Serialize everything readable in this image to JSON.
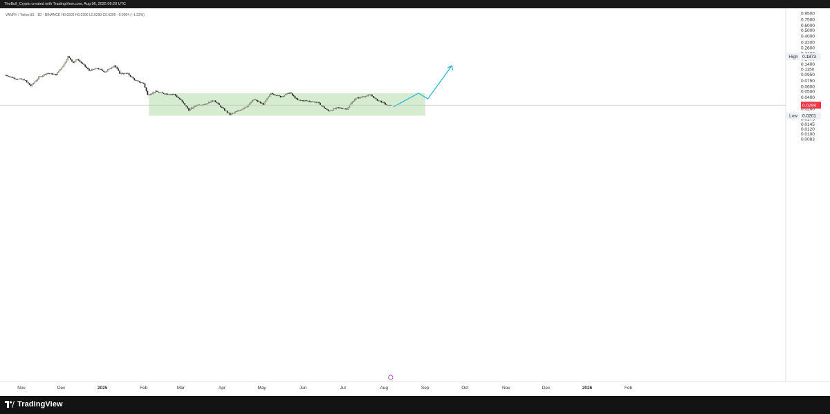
{
  "header": {
    "caption": "TheBull_Crypto created with TradingView.com, Aug 06, 2025 06:20 UTC"
  },
  "legend": {
    "text": "VANRY / TetherUS · 1D · BINANCE  H0.0303  H0.0306  L0.0290  C0.0299  −0.0004 (−1.32%)"
  },
  "footer": {
    "brand": "TradingView"
  },
  "colors": {
    "up": "#26a69a",
    "down": "#1a1a1a",
    "candle_up_body": "#c9b98e",
    "zone_fill": "#d3ebcd",
    "arrow": "#29b6d6",
    "price_tag": "#f23645",
    "divider": "#e0e0e0"
  },
  "chart_data": {
    "type": "candlestick",
    "symbol": "VANRY / TetherUS",
    "timeframe": "1D",
    "exchange": "BINANCE",
    "y_scale": "log",
    "y_ticks": [
      "0.9500",
      "0.7500",
      "0.6000",
      "0.5000",
      "0.4000",
      "0.3200",
      "0.2600",
      "0.2100",
      "0.1700",
      "0.1400",
      "0.1150",
      "0.0950",
      "0.0750",
      "0.0600",
      "0.0500",
      "0.0400",
      "0.0320",
      "0.0260",
      "0.0210",
      "0.0175",
      "0.0145",
      "0.0120",
      "0.0100",
      "0.0083"
    ],
    "y_tick_values": [
      0.95,
      0.75,
      0.6,
      0.5,
      0.4,
      0.32,
      0.26,
      0.21,
      0.17,
      0.14,
      0.115,
      0.095,
      0.075,
      0.06,
      0.05,
      0.04,
      0.032,
      0.026,
      0.021,
      0.0175,
      0.0145,
      0.012,
      0.01,
      0.0083
    ],
    "x_ticks": [
      "Nov",
      "Dec",
      "2025",
      "Feb",
      "Mar",
      "Apr",
      "May",
      "Jun",
      "Jul",
      "Aug",
      "Sep",
      "Oct",
      "Nov",
      "Dec",
      "2026",
      "Feb"
    ],
    "x_tick_dates": [
      "2024-11-01",
      "2024-12-01",
      "2025-01-01",
      "2025-02-01",
      "2025-03-01",
      "2025-04-01",
      "2025-05-01",
      "2025-06-01",
      "2025-07-01",
      "2025-08-01",
      "2025-09-01",
      "2025-10-01",
      "2025-11-01",
      "2025-12-01",
      "2026-01-01",
      "2026-02-01"
    ],
    "x_tick_bold": [
      false,
      false,
      true,
      false,
      false,
      false,
      false,
      false,
      false,
      false,
      false,
      false,
      false,
      false,
      true,
      false
    ],
    "price_path": [
      [
        "2024-10-20",
        0.093
      ],
      [
        "2024-10-27",
        0.082
      ],
      [
        "2024-11-03",
        0.078
      ],
      [
        "2024-11-08",
        0.062
      ],
      [
        "2024-11-14",
        0.085
      ],
      [
        "2024-11-20",
        0.1
      ],
      [
        "2024-11-27",
        0.095
      ],
      [
        "2024-12-03",
        0.14
      ],
      [
        "2024-12-06",
        0.187
      ],
      [
        "2024-12-10",
        0.15
      ],
      [
        "2024-12-13",
        0.17
      ],
      [
        "2024-12-18",
        0.135
      ],
      [
        "2024-12-22",
        0.11
      ],
      [
        "2024-12-28",
        0.12
      ],
      [
        "2025-01-03",
        0.105
      ],
      [
        "2025-01-10",
        0.135
      ],
      [
        "2025-01-14",
        0.1
      ],
      [
        "2025-01-20",
        0.098
      ],
      [
        "2025-01-26",
        0.075
      ],
      [
        "2025-02-01",
        0.068
      ],
      [
        "2025-02-04",
        0.044
      ],
      [
        "2025-02-10",
        0.05
      ],
      [
        "2025-02-17",
        0.046
      ],
      [
        "2025-02-24",
        0.045
      ],
      [
        "2025-03-01",
        0.036
      ],
      [
        "2025-03-07",
        0.025
      ],
      [
        "2025-03-13",
        0.03
      ],
      [
        "2025-03-19",
        0.031
      ],
      [
        "2025-03-26",
        0.036
      ],
      [
        "2025-04-01",
        0.027
      ],
      [
        "2025-04-07",
        0.021
      ],
      [
        "2025-04-13",
        0.024
      ],
      [
        "2025-04-20",
        0.029
      ],
      [
        "2025-04-25",
        0.037
      ],
      [
        "2025-05-02",
        0.031
      ],
      [
        "2025-05-08",
        0.047
      ],
      [
        "2025-05-15",
        0.041
      ],
      [
        "2025-05-22",
        0.048
      ],
      [
        "2025-05-28",
        0.036
      ],
      [
        "2025-06-05",
        0.035
      ],
      [
        "2025-06-12",
        0.033
      ],
      [
        "2025-06-20",
        0.024
      ],
      [
        "2025-06-27",
        0.027
      ],
      [
        "2025-07-04",
        0.026
      ],
      [
        "2025-07-10",
        0.038
      ],
      [
        "2025-07-17",
        0.042
      ],
      [
        "2025-07-22",
        0.044
      ],
      [
        "2025-07-26",
        0.037
      ],
      [
        "2025-07-31",
        0.033
      ],
      [
        "2025-08-04",
        0.029
      ],
      [
        "2025-08-06",
        0.0299
      ]
    ],
    "range_box": {
      "start": "2025-02-05",
      "end": "2025-09-01",
      "top": 0.047,
      "bottom": 0.0201
    },
    "projection": [
      [
        "2025-08-08",
        0.028
      ],
      [
        "2025-08-27",
        0.047
      ],
      [
        "2025-09-03",
        0.038
      ],
      [
        "2025-09-21",
        0.132
      ]
    ],
    "high": {
      "label": "High",
      "value": "0.1873"
    },
    "low": {
      "label": "Low",
      "value": "0.0201"
    },
    "last_price": {
      "value": "0.0299"
    },
    "grid": false,
    "volume": false
  }
}
